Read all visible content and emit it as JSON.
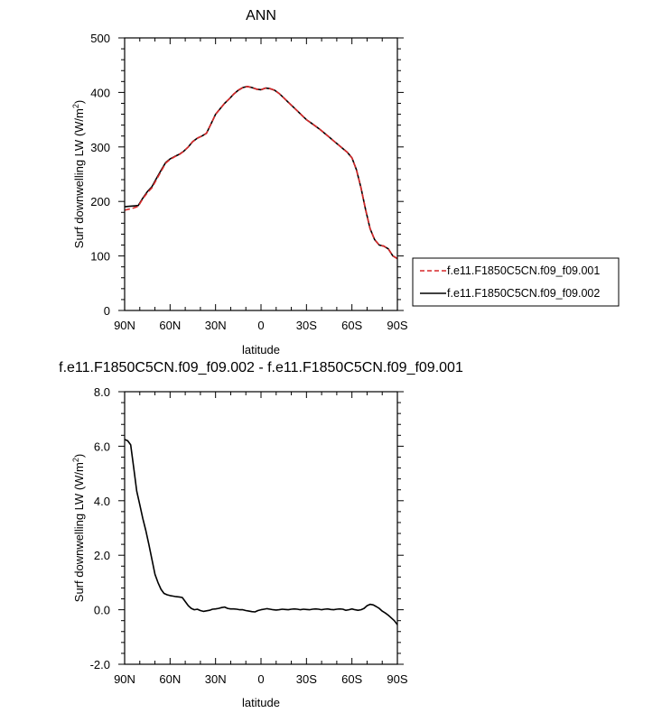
{
  "chart_data": [
    {
      "type": "line",
      "title": "ANN",
      "xlabel": "latitude",
      "ylabel": "Surf downwelling LW (W/m²)",
      "ylabel_main": "Surf downwelling LW (W/m",
      "ylabel_sup": "2",
      "ylabel_close": ")",
      "xlim": [
        90,
        -90
      ],
      "ylim": [
        0,
        500
      ],
      "xticks": [
        90,
        60,
        30,
        0,
        -30,
        -60,
        -90
      ],
      "xtick_labels": [
        "90N",
        "60N",
        "30N",
        "0",
        "30S",
        "60S",
        "90S"
      ],
      "yticks": [
        0,
        100,
        200,
        300,
        400,
        500
      ],
      "ytick_labels": [
        "0",
        "100",
        "200",
        "300",
        "400",
        "500"
      ],
      "grid": false,
      "legend": "right",
      "series": [
        {
          "name": "f.e11.F1850C5CN.f09_f09.001",
          "color": "#d62728",
          "dash": "dashed",
          "x": [
            90,
            87,
            84,
            81,
            78,
            75,
            72,
            69,
            66,
            63,
            60,
            57,
            54,
            51,
            48,
            45,
            42,
            39,
            36,
            33,
            30,
            27,
            24,
            21,
            18,
            15,
            12,
            9,
            6,
            3,
            0,
            -3,
            -6,
            -9,
            -12,
            -15,
            -18,
            -21,
            -24,
            -27,
            -30,
            -33,
            -36,
            -39,
            -42,
            -45,
            -48,
            -51,
            -54,
            -57,
            -60,
            -63,
            -66,
            -69,
            -72,
            -75,
            -78,
            -81,
            -84,
            -87,
            -90
          ],
          "y": [
            184,
            186,
            188,
            191,
            205,
            216,
            225,
            240,
            255,
            270,
            277,
            282,
            286,
            292,
            300,
            310,
            316,
            320,
            325,
            342,
            360,
            370,
            380,
            388,
            397,
            404,
            409,
            411,
            409,
            406,
            405,
            408,
            407,
            404,
            398,
            390,
            382,
            374,
            366,
            358,
            350,
            344,
            338,
            332,
            325,
            318,
            311,
            304,
            297,
            290,
            280,
            258,
            225,
            185,
            150,
            130,
            120,
            118,
            113,
            100,
            95
          ]
        },
        {
          "name": "f.e11.F1850C5CN.f09_f09.002",
          "color": "#000000",
          "dash": "solid",
          "x": [
            90,
            87,
            84,
            81,
            78,
            75,
            72,
            69,
            66,
            63,
            60,
            57,
            54,
            51,
            48,
            45,
            42,
            39,
            36,
            33,
            30,
            27,
            24,
            21,
            18,
            15,
            12,
            9,
            6,
            3,
            0,
            -3,
            -6,
            -9,
            -12,
            -15,
            -18,
            -21,
            -24,
            -27,
            -30,
            -33,
            -36,
            -39,
            -42,
            -45,
            -48,
            -51,
            -54,
            -57,
            -60,
            -63,
            -66,
            -69,
            -72,
            -75,
            -78,
            -81,
            -84,
            -87,
            -90
          ],
          "y": [
            190.2,
            191.1,
            191.8,
            192.6,
            206,
            218,
            227,
            242,
            257,
            271,
            278,
            282.5,
            286.4,
            292,
            300,
            310,
            316,
            320,
            325,
            342,
            360,
            370,
            380,
            388,
            397,
            404,
            409,
            411,
            409,
            406,
            405,
            408,
            407,
            404,
            398,
            390,
            382,
            374,
            366,
            358,
            350,
            344,
            338,
            332,
            325,
            318,
            311,
            304,
            297,
            290,
            280,
            258,
            225,
            185,
            150,
            130,
            120,
            118,
            113,
            100,
            95
          ]
        }
      ]
    },
    {
      "type": "line",
      "title": "f.e11.F1850C5CN.f09_f09.002 - f.e11.F1850C5CN.f09_f09.001",
      "xlabel": "latitude",
      "ylabel": "Surf downwelling LW (W/m²)",
      "ylabel_main": "Surf downwelling LW (W/m",
      "ylabel_sup": "2",
      "ylabel_close": ")",
      "xlim": [
        90,
        -90
      ],
      "ylim": [
        -2.0,
        8.0
      ],
      "xticks": [
        90,
        60,
        30,
        0,
        -30,
        -60,
        -90
      ],
      "xtick_labels": [
        "90N",
        "60N",
        "30N",
        "0",
        "30S",
        "60S",
        "90S"
      ],
      "yticks": [
        -2,
        0,
        2,
        4,
        6,
        8
      ],
      "ytick_labels": [
        "-2.0",
        "0.0",
        "2.0",
        "4.0",
        "6.0",
        "8.0"
      ],
      "grid": false,
      "series": [
        {
          "color": "#000000",
          "dash": "solid",
          "x": [
            90,
            88,
            86,
            84,
            82,
            80,
            78,
            76,
            74,
            72,
            70,
            68,
            66,
            64,
            62,
            60,
            58,
            56,
            54,
            52,
            50,
            48,
            46,
            44,
            42,
            40,
            38,
            36,
            34,
            32,
            30,
            28,
            26,
            24,
            22,
            20,
            18,
            16,
            14,
            12,
            10,
            8,
            6,
            4,
            2,
            0,
            -2,
            -4,
            -6,
            -8,
            -10,
            -12,
            -14,
            -16,
            -18,
            -20,
            -22,
            -24,
            -26,
            -28,
            -30,
            -32,
            -34,
            -36,
            -38,
            -40,
            -42,
            -44,
            -46,
            -48,
            -50,
            -52,
            -54,
            -56,
            -58,
            -60,
            -62,
            -64,
            -66,
            -68,
            -70,
            -72,
            -74,
            -76,
            -78,
            -80,
            -82,
            -84,
            -86,
            -88,
            -90
          ],
          "y": [
            6.25,
            6.2,
            6.05,
            5.2,
            4.35,
            3.85,
            3.35,
            2.9,
            2.4,
            1.85,
            1.3,
            1.0,
            0.75,
            0.6,
            0.55,
            0.52,
            0.5,
            0.48,
            0.47,
            0.45,
            0.3,
            0.15,
            0.05,
            0.0,
            0.02,
            -0.03,
            -0.06,
            -0.04,
            -0.02,
            0.02,
            0.03,
            0.05,
            0.08,
            0.1,
            0.05,
            0.03,
            0.03,
            0.02,
            0.0,
            0.0,
            -0.03,
            -0.05,
            -0.07,
            -0.08,
            -0.03,
            0.0,
            0.02,
            0.04,
            0.02,
            0.0,
            -0.01,
            0.0,
            0.02,
            0.01,
            0.0,
            0.02,
            0.03,
            0.02,
            0.0,
            0.02,
            0.01,
            0.0,
            0.02,
            0.03,
            0.02,
            0.0,
            0.02,
            0.03,
            0.01,
            0.0,
            0.02,
            0.03,
            0.02,
            -0.02,
            0.0,
            0.03,
            0.0,
            -0.02,
            0.0,
            0.05,
            0.15,
            0.2,
            0.18,
            0.12,
            0.05,
            -0.05,
            -0.12,
            -0.2,
            -0.3,
            -0.4,
            -0.55
          ]
        }
      ]
    }
  ]
}
